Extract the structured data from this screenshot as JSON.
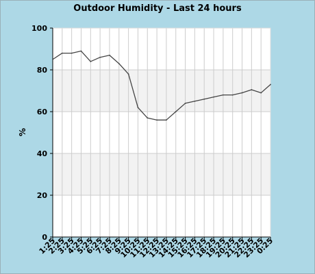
{
  "chart_data": {
    "type": "line",
    "title": "Outdoor Humidity - Last 24 hours",
    "xlabel": "",
    "ylabel": "%",
    "ylim": [
      0,
      100
    ],
    "yticks": [
      "0",
      "20",
      "40",
      "60",
      "80",
      "100"
    ],
    "grid": true,
    "x": [
      "1:25",
      "2:25",
      "3:25",
      "4:25",
      "5:25",
      "6:25",
      "7:25",
      "8:25",
      "9:25",
      "10:25",
      "11:25",
      "12:25",
      "13:25",
      "14:25",
      "15:25",
      "16:25",
      "17:25",
      "18:25",
      "19:25",
      "20:25",
      "21:25",
      "22:25",
      "23:25",
      "0:25"
    ],
    "series": [
      {
        "values": [
          85,
          88,
          88,
          89,
          84,
          86,
          87,
          83,
          78,
          62,
          57,
          56,
          56,
          60,
          64,
          65,
          66,
          67,
          68,
          68,
          69,
          70.5,
          69,
          73
        ],
        "color": "#444444"
      }
    ],
    "colors": {
      "page_background": "#add8e6",
      "plot_background": "#ffffff",
      "band": "#f2f2f2",
      "grid": "#cccccc",
      "axis": "#000000"
    }
  }
}
